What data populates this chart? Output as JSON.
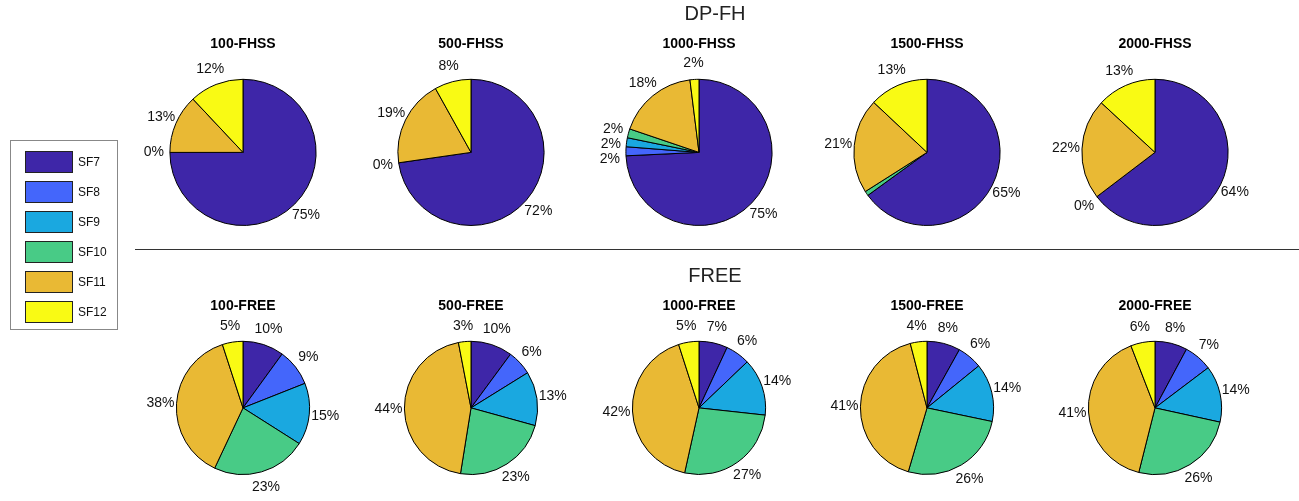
{
  "chart_data": [
    {
      "type": "other",
      "title": "DP-FH"
    },
    {
      "type": "pie",
      "title": "100-FHSS",
      "legend": "left",
      "categories": [
        "SF7",
        "SF8",
        "SF9",
        "SF10",
        "SF11",
        "SF12"
      ],
      "values": [
        75,
        0,
        0,
        0,
        13,
        12
      ],
      "value_labels": [
        "75%",
        "0%",
        null,
        null,
        "13%",
        "12%"
      ],
      "colors": [
        "#3e26a8",
        "#4466fb",
        "#1aa8e0",
        "#48cb86",
        "#e9b934",
        "#f9fa14"
      ]
    },
    {
      "type": "pie",
      "title": "500-FHSS",
      "values": [
        72,
        0,
        0,
        0,
        19,
        8
      ],
      "value_labels": [
        "72%",
        "0%",
        null,
        null,
        "19%",
        "8%"
      ],
      "colors": [
        "#3e26a8",
        "#4466fb",
        "#1aa8e0",
        "#48cb86",
        "#e9b934",
        "#f9fa14"
      ]
    },
    {
      "type": "pie",
      "title": "1000-FHSS",
      "values": [
        75,
        2,
        2,
        2,
        18,
        2
      ],
      "value_labels": [
        "75%",
        "2%",
        "2%",
        "2%",
        "18%",
        "2%"
      ],
      "colors": [
        "#3e26a8",
        "#4466fb",
        "#1aa8e0",
        "#48cb86",
        "#e9b934",
        "#f9fa14"
      ]
    },
    {
      "type": "pie",
      "title": "1500-FHSS",
      "values": [
        65,
        0,
        0,
        1,
        21,
        13
      ],
      "value_labels": [
        "65%",
        null,
        null,
        null,
        "21%",
        "13%"
      ],
      "colors": [
        "#3e26a8",
        "#4466fb",
        "#1aa8e0",
        "#48cb86",
        "#e9b934",
        "#f9fa14"
      ]
    },
    {
      "type": "pie",
      "title": "2000-FHSS",
      "values": [
        64,
        0,
        0,
        0,
        22,
        13
      ],
      "value_labels": [
        "64%",
        "0%",
        null,
        null,
        "22%",
        "13%"
      ],
      "colors": [
        "#3e26a8",
        "#4466fb",
        "#1aa8e0",
        "#48cb86",
        "#e9b934",
        "#f9fa14"
      ]
    },
    {
      "type": "other",
      "title": "FREE"
    },
    {
      "type": "pie",
      "title": "100-FREE",
      "values": [
        10,
        9,
        15,
        23,
        38,
        5
      ],
      "value_labels": [
        "10%",
        "9%",
        "15%",
        "23%",
        "38%",
        "5%"
      ],
      "colors": [
        "#3e26a8",
        "#4466fb",
        "#1aa8e0",
        "#48cb86",
        "#e9b934",
        "#f9fa14"
      ]
    },
    {
      "type": "pie",
      "title": "500-FREE",
      "values": [
        10,
        6,
        13,
        23,
        44,
        3
      ],
      "value_labels": [
        "10%",
        "6%",
        "13%",
        "23%",
        "44%",
        "3%"
      ],
      "colors": [
        "#3e26a8",
        "#4466fb",
        "#1aa8e0",
        "#48cb86",
        "#e9b934",
        "#f9fa14"
      ]
    },
    {
      "type": "pie",
      "title": "1000-FREE",
      "values": [
        7,
        6,
        14,
        27,
        42,
        5
      ],
      "value_labels": [
        "7%",
        "6%",
        "14%",
        "27%",
        "42%",
        "5%"
      ],
      "colors": [
        "#3e26a8",
        "#4466fb",
        "#1aa8e0",
        "#48cb86",
        "#e9b934",
        "#f9fa14"
      ]
    },
    {
      "type": "pie",
      "title": "1500-FREE",
      "values": [
        8,
        6,
        14,
        26,
        41,
        4
      ],
      "value_labels": [
        "8%",
        "6%",
        "14%",
        "26%",
        "41%",
        "4%"
      ],
      "colors": [
        "#3e26a8",
        "#4466fb",
        "#1aa8e0",
        "#48cb86",
        "#e9b934",
        "#f9fa14"
      ]
    },
    {
      "type": "pie",
      "title": "2000-FREE",
      "values": [
        8,
        7,
        14,
        26,
        41,
        6
      ],
      "value_labels": [
        "8%",
        "7%",
        "14%",
        "26%",
        "41%",
        "6%"
      ],
      "colors": [
        "#3e26a8",
        "#4466fb",
        "#1aa8e0",
        "#48cb86",
        "#e9b934",
        "#f9fa14"
      ]
    }
  ]
}
